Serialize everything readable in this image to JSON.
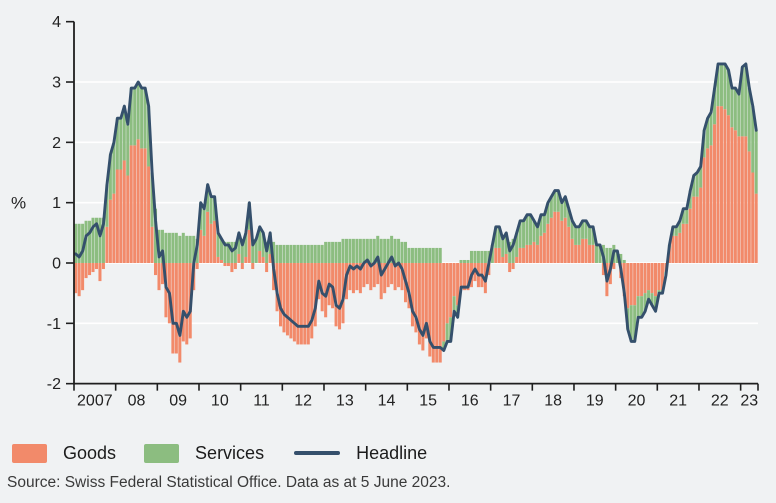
{
  "figure": {
    "background": "#f0f2f3",
    "ylabel": "%",
    "source": "Source: Swiss Federal Statistical Office. Data as at 5 June 2023."
  },
  "legend": {
    "goods": "Goods",
    "services": "Services",
    "headline": "Headline"
  },
  "colors": {
    "goods": "#f28a6a",
    "services": "#8cbd80",
    "headline": "#35506c",
    "axis": "#1f1f1f",
    "grid": "#ffffff",
    "tick_text": "#222222"
  },
  "chart_data": {
    "type": "bar",
    "subtype": "stacked-monthly-contributions-with-line",
    "title": "",
    "xlabel": "",
    "ylabel": "%",
    "ylim": [
      -2,
      4
    ],
    "yticks": [
      -2,
      -1,
      0,
      1,
      2,
      3,
      4
    ],
    "gridlines_at": [
      -1,
      0,
      1,
      2,
      3
    ],
    "grid": "horizontal-white",
    "legend_position": "bottom",
    "x_range": "monthly from 2007-01 to 2023-05",
    "xtick_labels": [
      "2007",
      "08",
      "09",
      "10",
      "11",
      "12",
      "13",
      "14",
      "15",
      "16",
      "17",
      "18",
      "19",
      "20",
      "21",
      "22",
      "23"
    ],
    "series": [
      {
        "name": "Goods",
        "type": "bar",
        "values": [
          -0.5,
          -0.55,
          -0.45,
          -0.25,
          -0.2,
          -0.15,
          -0.1,
          -0.3,
          -0.1,
          0.6,
          1.05,
          1.15,
          1.55,
          1.55,
          1.7,
          1.45,
          1.95,
          1.95,
          2.05,
          1.9,
          1.9,
          1.6,
          0.6,
          -0.2,
          -0.45,
          -0.35,
          -0.9,
          -1.0,
          -1.5,
          -1.5,
          -1.65,
          -1.3,
          -1.35,
          -1.25,
          -0.45,
          -0.1,
          0.55,
          0.45,
          0.85,
          0.65,
          0.7,
          0.1,
          0.05,
          -0.05,
          -0.05,
          -0.15,
          -0.1,
          0.15,
          -0.1,
          0.1,
          0.55,
          -0.1,
          0.0,
          0.2,
          0.1,
          -0.15,
          0.15,
          -0.45,
          -0.8,
          -1.05,
          -1.15,
          -1.2,
          -1.25,
          -1.3,
          -1.35,
          -1.35,
          -1.35,
          -1.35,
          -1.25,
          -1.05,
          -0.6,
          -0.8,
          -0.9,
          -0.7,
          -0.75,
          -1.05,
          -1.1,
          -1.0,
          -0.6,
          -0.45,
          -0.5,
          -0.45,
          -0.5,
          -0.4,
          -0.35,
          -0.45,
          -0.4,
          -0.35,
          -0.6,
          -0.5,
          -0.4,
          -0.35,
          -0.45,
          -0.4,
          -0.45,
          -0.65,
          -0.75,
          -1.05,
          -1.15,
          -1.35,
          -1.45,
          -1.25,
          -1.55,
          -1.65,
          -1.65,
          -1.65,
          -1.3,
          -1.0,
          -0.9,
          -0.55,
          -0.7,
          -0.45,
          -0.45,
          -0.45,
          -0.4,
          -0.3,
          -0.4,
          -0.4,
          -0.5,
          -0.2,
          0.0,
          0.25,
          0.25,
          0.1,
          0.15,
          -0.15,
          -0.1,
          0.1,
          0.25,
          0.25,
          0.3,
          0.3,
          0.35,
          0.3,
          0.45,
          0.5,
          0.65,
          0.75,
          0.85,
          0.85,
          0.7,
          0.75,
          0.6,
          0.4,
          0.3,
          0.3,
          0.4,
          0.4,
          0.3,
          0.3,
          0.0,
          0.0,
          -0.2,
          -0.55,
          -0.35,
          -0.1,
          0.0,
          -0.25,
          -0.55,
          -0.75,
          -0.7,
          -0.7,
          -0.55,
          -0.55,
          -0.5,
          -0.45,
          -0.5,
          -0.55,
          -0.45,
          -0.45,
          -0.15,
          0.25,
          0.45,
          0.45,
          0.5,
          0.65,
          0.65,
          0.9,
          1.1,
          1.1,
          1.25,
          1.75,
          1.9,
          1.95,
          2.3,
          2.6,
          2.6,
          2.55,
          2.45,
          2.25,
          2.2,
          2.1,
          2.1,
          2.1,
          1.85,
          1.5,
          1.15
        ]
      },
      {
        "name": "Services",
        "type": "bar",
        "values": [
          0.65,
          0.65,
          0.65,
          0.7,
          0.7,
          0.75,
          0.75,
          0.75,
          0.75,
          0.7,
          0.75,
          0.85,
          0.85,
          0.85,
          0.9,
          0.85,
          0.95,
          0.95,
          0.95,
          1.0,
          1.0,
          1.0,
          0.9,
          0.9,
          0.55,
          0.55,
          0.5,
          0.5,
          0.5,
          0.5,
          0.45,
          0.5,
          0.45,
          0.45,
          0.45,
          0.4,
          0.45,
          0.45,
          0.45,
          0.45,
          0.4,
          0.4,
          0.35,
          0.35,
          0.35,
          0.35,
          0.35,
          0.35,
          0.4,
          0.4,
          0.45,
          0.4,
          0.4,
          0.4,
          0.4,
          0.35,
          0.35,
          0.35,
          0.3,
          0.3,
          0.3,
          0.3,
          0.3,
          0.3,
          0.3,
          0.3,
          0.3,
          0.3,
          0.3,
          0.3,
          0.3,
          0.3,
          0.35,
          0.35,
          0.35,
          0.35,
          0.35,
          0.4,
          0.4,
          0.4,
          0.4,
          0.4,
          0.4,
          0.4,
          0.4,
          0.4,
          0.4,
          0.45,
          0.4,
          0.4,
          0.4,
          0.45,
          0.4,
          0.4,
          0.35,
          0.35,
          0.25,
          0.25,
          0.25,
          0.25,
          0.25,
          0.25,
          0.25,
          0.25,
          0.25,
          0.25,
          -0.15,
          -0.3,
          -0.4,
          -0.25,
          -0.2,
          0.05,
          0.05,
          0.05,
          0.2,
          0.2,
          0.2,
          0.2,
          0.2,
          0.2,
          0.3,
          0.35,
          0.35,
          0.3,
          0.35,
          0.35,
          0.4,
          0.4,
          0.45,
          0.45,
          0.5,
          0.5,
          0.35,
          0.3,
          0.35,
          0.3,
          0.35,
          0.35,
          0.35,
          0.35,
          0.3,
          0.35,
          0.3,
          0.3,
          0.3,
          0.3,
          0.3,
          0.3,
          0.3,
          0.3,
          0.3,
          0.3,
          0.3,
          0.25,
          0.25,
          0.3,
          0.2,
          0.15,
          0.05,
          -0.35,
          -0.6,
          -0.6,
          -0.35,
          -0.35,
          -0.3,
          -0.15,
          -0.2,
          -0.25,
          -0.05,
          -0.05,
          -0.05,
          0.05,
          0.15,
          0.15,
          0.2,
          0.25,
          0.25,
          0.3,
          0.35,
          0.4,
          0.35,
          0.45,
          0.5,
          0.55,
          0.6,
          0.7,
          0.7,
          0.75,
          0.75,
          0.65,
          0.7,
          0.7,
          1.15,
          1.2,
          1.05,
          1.1,
          1.05
        ]
      },
      {
        "name": "Headline",
        "type": "line",
        "values": [
          0.15,
          0.1,
          0.2,
          0.45,
          0.5,
          0.6,
          0.65,
          0.45,
          0.65,
          1.3,
          1.8,
          2.0,
          2.4,
          2.4,
          2.6,
          2.3,
          2.9,
          2.9,
          3.0,
          2.9,
          2.9,
          2.6,
          1.5,
          0.7,
          0.1,
          0.2,
          -0.4,
          -0.5,
          -1.0,
          -1.0,
          -1.2,
          -0.8,
          -0.9,
          -0.8,
          0.0,
          0.3,
          1.0,
          0.9,
          1.3,
          1.1,
          1.1,
          0.5,
          0.4,
          0.3,
          0.3,
          0.2,
          0.25,
          0.5,
          0.3,
          0.5,
          1.0,
          0.3,
          0.4,
          0.6,
          0.5,
          0.2,
          0.5,
          -0.1,
          -0.5,
          -0.75,
          -0.85,
          -0.9,
          -0.95,
          -1.0,
          -1.05,
          -1.05,
          -1.05,
          -1.05,
          -0.95,
          -0.75,
          -0.3,
          -0.5,
          -0.55,
          -0.35,
          -0.4,
          -0.7,
          -0.75,
          -0.6,
          -0.2,
          -0.05,
          -0.1,
          -0.05,
          -0.1,
          0.0,
          0.05,
          -0.05,
          0.0,
          0.1,
          -0.2,
          -0.1,
          0.0,
          0.1,
          -0.05,
          0.0,
          -0.1,
          -0.3,
          -0.5,
          -0.8,
          -0.9,
          -1.1,
          -1.2,
          -1.0,
          -1.3,
          -1.4,
          -1.4,
          -1.4,
          -1.45,
          -1.3,
          -1.3,
          -0.8,
          -0.9,
          -0.4,
          -0.4,
          -0.4,
          -0.2,
          -0.1,
          -0.2,
          -0.2,
          -0.3,
          0.0,
          0.3,
          0.6,
          0.6,
          0.4,
          0.5,
          0.2,
          0.3,
          0.5,
          0.7,
          0.7,
          0.8,
          0.8,
          0.7,
          0.6,
          0.8,
          0.8,
          1.0,
          1.1,
          1.2,
          1.2,
          1.0,
          1.1,
          0.9,
          0.7,
          0.6,
          0.6,
          0.7,
          0.7,
          0.6,
          0.6,
          0.3,
          0.3,
          0.1,
          -0.3,
          -0.1,
          0.2,
          0.2,
          -0.1,
          -0.5,
          -1.1,
          -1.3,
          -1.3,
          -0.9,
          -0.9,
          -0.8,
          -0.6,
          -0.7,
          -0.8,
          -0.5,
          -0.5,
          -0.2,
          0.3,
          0.6,
          0.6,
          0.7,
          0.9,
          0.9,
          1.2,
          1.45,
          1.5,
          1.6,
          2.2,
          2.4,
          2.5,
          2.9,
          3.3,
          3.3,
          3.3,
          3.2,
          2.9,
          2.9,
          2.8,
          3.25,
          3.3,
          2.9,
          2.6,
          2.2
        ]
      }
    ]
  }
}
